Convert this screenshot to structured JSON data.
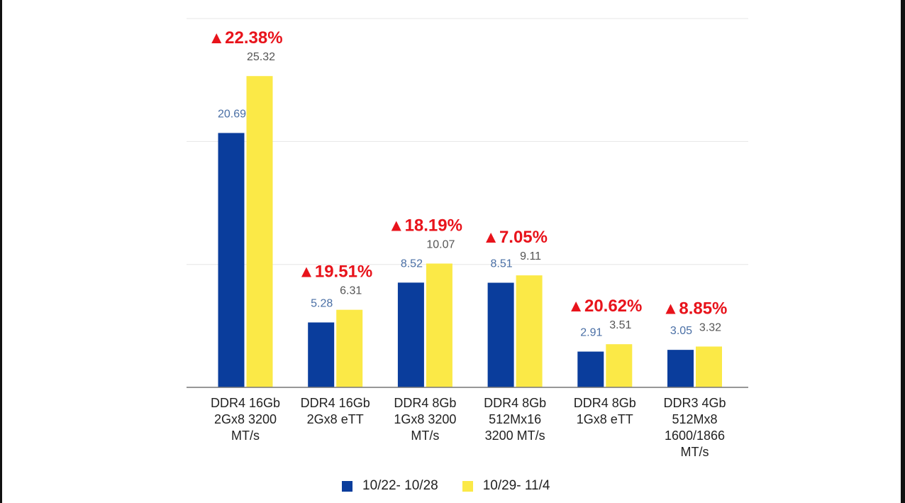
{
  "colors": {
    "series1": "#0a3d9c",
    "series2": "#fbe947",
    "increase": "#e8131b",
    "value_label_series1": "#4a6fa5",
    "value_label_series2": "#555555",
    "grid": "#e6e6e6",
    "axis": "#777777"
  },
  "legend": {
    "items": [
      {
        "label": "10/22- 10/28"
      },
      {
        "label": "10/29- 11/4"
      }
    ]
  },
  "chart_data": {
    "type": "bar",
    "categories": [
      [
        "DDR4 16Gb",
        "2Gx8 3200",
        "MT/s"
      ],
      [
        "DDR4 16Gb",
        "2Gx8 eTT"
      ],
      [
        "DDR4 8Gb",
        "1Gx8 3200",
        "MT/s"
      ],
      [
        "DDR4 8Gb",
        "512Mx16",
        "3200 MT/s"
      ],
      [
        "DDR4 8Gb",
        "1Gx8 eTT"
      ],
      [
        "DDR3 4Gb",
        "512Mx8",
        "1600/1866",
        "MT/s"
      ]
    ],
    "series": [
      {
        "name": "10/22- 10/28",
        "values": [
          20.69,
          5.28,
          8.52,
          8.51,
          2.91,
          3.05
        ],
        "labels": [
          "20.69",
          "5.28",
          "8.52",
          "8.51",
          "2.91",
          "3.05"
        ]
      },
      {
        "name": "10/29- 11/4",
        "values": [
          25.32,
          6.31,
          10.07,
          9.11,
          3.51,
          3.32
        ],
        "labels": [
          "25.32",
          "6.31",
          "10.07",
          "9.11",
          "3.51",
          "3.32"
        ]
      }
    ],
    "annotations": [
      "▲22.38%",
      "▲19.51%",
      "▲18.19%",
      "▲7.05%",
      "▲20.62%",
      "▲8.85%"
    ],
    "ylim": [
      0,
      30
    ],
    "grid": true,
    "legend_position": "bottom"
  }
}
